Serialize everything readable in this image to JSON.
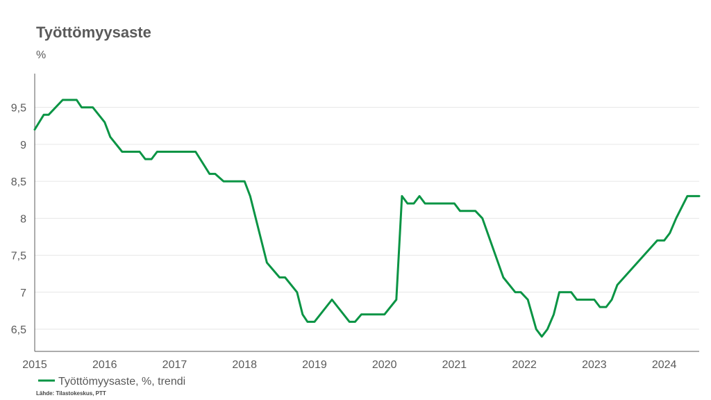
{
  "chart_data": {
    "type": "line",
    "title": "Työttömyysaste",
    "ylabel": "%",
    "xlabel": "",
    "ylim": [
      6.2,
      9.9
    ],
    "xlim": [
      2015,
      2024.5
    ],
    "y_ticks": [
      "6,5",
      "7",
      "7,5",
      "8",
      "8,5",
      "9",
      "9,5"
    ],
    "x_ticks": [
      "2015",
      "2016",
      "2017",
      "2018",
      "2019",
      "2020",
      "2021",
      "2022",
      "2023",
      "2024"
    ],
    "grid": true,
    "legend_position": "bottom-left",
    "series": [
      {
        "name": "Työttömyysaste, %, trendi",
        "color": "#0a9444",
        "x": [
          2015.0,
          2015.13,
          2015.2,
          2015.4,
          2015.6,
          2015.67,
          2015.83,
          2016.0,
          2016.08,
          2016.25,
          2016.5,
          2016.58,
          2016.67,
          2016.75,
          2017.0,
          2017.3,
          2017.5,
          2017.58,
          2017.7,
          2018.0,
          2018.08,
          2018.32,
          2018.5,
          2018.58,
          2018.75,
          2018.83,
          2018.9,
          2019.0,
          2019.25,
          2019.5,
          2019.58,
          2019.67,
          2020.0,
          2020.17,
          2020.25,
          2020.33,
          2020.42,
          2020.5,
          2020.58,
          2020.67,
          2021.0,
          2021.08,
          2021.3,
          2021.4,
          2021.7,
          2021.87,
          2021.95,
          2022.05,
          2022.17,
          2022.25,
          2022.33,
          2022.42,
          2022.5,
          2022.67,
          2022.75,
          2023.0,
          2023.08,
          2023.17,
          2023.25,
          2023.33,
          2023.9,
          2024.0,
          2024.08,
          2024.17,
          2024.33,
          2024.5
        ],
        "values": [
          9.2,
          9.4,
          9.4,
          9.6,
          9.6,
          9.5,
          9.5,
          9.3,
          9.1,
          8.9,
          8.9,
          8.8,
          8.8,
          8.9,
          8.9,
          8.9,
          8.6,
          8.6,
          8.5,
          8.5,
          8.3,
          7.4,
          7.2,
          7.2,
          7.0,
          6.7,
          6.6,
          6.6,
          6.9,
          6.6,
          6.6,
          6.7,
          6.7,
          6.9,
          8.3,
          8.2,
          8.2,
          8.3,
          8.2,
          8.2,
          8.2,
          8.1,
          8.1,
          8.0,
          7.2,
          7.0,
          7.0,
          6.9,
          6.5,
          6.4,
          6.5,
          6.7,
          7.0,
          7.0,
          6.9,
          6.9,
          6.8,
          6.8,
          6.9,
          7.1,
          7.7,
          7.7,
          7.8,
          8.0,
          8.3,
          8.3
        ]
      }
    ]
  },
  "source_text": "Lähde: Tilastokeskus, PTT"
}
